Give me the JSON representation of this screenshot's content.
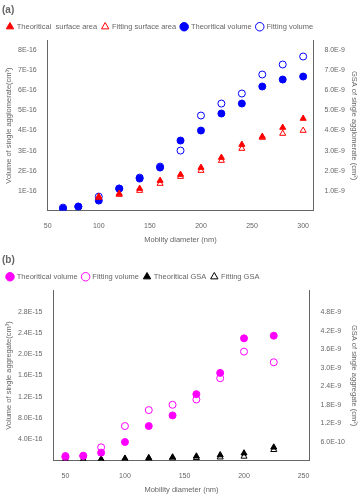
{
  "chart_data": [
    {
      "type": "scatter",
      "title": "(a)",
      "x_label": "Moblity diameter (nm)",
      "y_label": "Volume of single agglomerate(cm³)",
      "y2_label": "GSA of single agglomerate (cm²)",
      "xlim": [
        50,
        310
      ],
      "ylim": [
        0,
        8.5e-16
      ],
      "y2lim": [
        0,
        8.5e-09
      ],
      "xticks": [
        50,
        100,
        150,
        200,
        250,
        300
      ],
      "yticks": [
        {
          "value": 1e-16,
          "label": "1E-16"
        },
        {
          "value": 2e-16,
          "label": "2E-16"
        },
        {
          "value": 3e-16,
          "label": "3E-16"
        },
        {
          "value": 4e-16,
          "label": "4E-16"
        },
        {
          "value": 5e-16,
          "label": "5E-16"
        },
        {
          "value": 6e-16,
          "label": "6E-16"
        },
        {
          "value": 7e-16,
          "label": "7E-16"
        },
        {
          "value": 8e-16,
          "label": "8E-16"
        }
      ],
      "y2ticks": [
        {
          "value": 1e-09,
          "label": "1.0E-9"
        },
        {
          "value": 2e-09,
          "label": "2.0E-9"
        },
        {
          "value": 3e-09,
          "label": "3.0E-9"
        },
        {
          "value": 4e-09,
          "label": "4.0E-9"
        },
        {
          "value": 5e-09,
          "label": "5.0E-9"
        },
        {
          "value": 6e-09,
          "label": "6.0E-9"
        },
        {
          "value": 7e-09,
          "label": "7.0E-9"
        },
        {
          "value": 8e-09,
          "label": "8.0E-9"
        }
      ],
      "grid": false,
      "legend": "upper left",
      "series": [
        {
          "name": "Theoritical  surface area",
          "color": "#FF0000",
          "marker": "triangle",
          "axis": "y2",
          "x": [
            100,
            120,
            140,
            160,
            180,
            200,
            220,
            240,
            260,
            280,
            300
          ],
          "values": [
            7e-10,
            8.5e-10,
            1.1e-09,
            1.5e-09,
            1.8e-09,
            2.15e-09,
            2.65e-09,
            3.3e-09,
            3.7e-09,
            4.15e-09,
            4.6e-09
          ]
        },
        {
          "name": "Fitting surface area",
          "color": "#FF0000",
          "marker": "triangle-open",
          "axis": "y2",
          "x": [
            100,
            120,
            140,
            160,
            180,
            200,
            220,
            240,
            260,
            280,
            300
          ],
          "values": [
            6.5e-10,
            8e-10,
            1e-09,
            1.35e-09,
            1.7e-09,
            2e-09,
            2.5e-09,
            3.1e-09,
            3.65e-09,
            3.85e-09,
            4e-09
          ]
        },
        {
          "name": "Theoritical volume",
          "color": "#0000FF",
          "marker": "circle",
          "axis": "y",
          "x": [
            65,
            80,
            100,
            120,
            140,
            160,
            180,
            200,
            220,
            240,
            260,
            280,
            300
          ],
          "values": [
            1e-17,
            2e-17,
            5e-17,
            1.1e-16,
            1.6e-16,
            2.15e-16,
            3.5e-16,
            4e-16,
            4.85e-16,
            5.35e-16,
            6.2e-16,
            6.55e-16,
            6.7e-16
          ]
        },
        {
          "name": "Fitting volume",
          "color": "#0000FF",
          "marker": "circle-open",
          "axis": "y",
          "x": [
            65,
            80,
            100,
            120,
            140,
            160,
            180,
            200,
            220,
            240,
            260,
            280,
            300
          ],
          "values": [
            1.5e-17,
            2e-17,
            7e-17,
            1.1e-16,
            1.65e-16,
            2.2e-16,
            3e-16,
            4.75e-16,
            5.35e-16,
            5.85e-16,
            6.8e-16,
            7.3e-16,
            7.7e-16
          ]
        }
      ]
    },
    {
      "type": "scatter",
      "title": "(b)",
      "x_label": "Mobility diameter (nm)",
      "y_label": "Volume of single aggregate(cm³)",
      "y2_label": "GSA of single aggregate (cm²)",
      "xlim": [
        40,
        255
      ],
      "ylim": [
        0,
        3.2e-15
      ],
      "y2lim": [
        0,
        5.5e-09
      ],
      "xticks": [
        50,
        100,
        150,
        200,
        250
      ],
      "yticks": [
        {
          "value": 4e-16,
          "label": "4.0E-16"
        },
        {
          "value": 8e-16,
          "label": "8.0E-16"
        },
        {
          "value": 1.2e-15,
          "label": "1.2E-15"
        },
        {
          "value": 1.6e-15,
          "label": "1.6E-15"
        },
        {
          "value": 2e-15,
          "label": "2.0E-15"
        },
        {
          "value": 2.4e-15,
          "label": "2.4E-15"
        },
        {
          "value": 2.8e-15,
          "label": "2.8E-15"
        }
      ],
      "y2ticks": [
        {
          "value": 6e-10,
          "label": "6.0E-10"
        },
        {
          "value": 1.2e-09,
          "label": "1.2E-9"
        },
        {
          "value": 1.8e-09,
          "label": "1.8E-9"
        },
        {
          "value": 2.4e-09,
          "label": "2.4E-9"
        },
        {
          "value": 3e-09,
          "label": "3.0E-9"
        },
        {
          "value": 3.6e-09,
          "label": "3.6E-9"
        },
        {
          "value": 4.2e-09,
          "label": "4.2E-9"
        },
        {
          "value": 4.8e-09,
          "label": "4.8E-9"
        }
      ],
      "grid": false,
      "legend": "upper left",
      "series": [
        {
          "name": "Theoritical volume",
          "color": "#FF00FF",
          "marker": "circle",
          "axis": "y",
          "x": [
            50,
            65,
            80,
            100,
            120,
            140,
            160,
            180,
            200,
            225
          ],
          "values": [
            8.5e-17,
            9e-17,
            1.5e-16,
            3.5e-16,
            6.5e-16,
            8.5e-16,
            1.25e-15,
            1.65e-15,
            2.3e-15,
            2.35e-15
          ]
        },
        {
          "name": "Fitting volume",
          "color": "#FF00FF",
          "marker": "circle-open",
          "axis": "y",
          "x": [
            50,
            65,
            80,
            100,
            120,
            140,
            160,
            180,
            200,
            225
          ],
          "values": [
            6.5e-17,
            9e-17,
            2.5e-16,
            6.5e-16,
            9.5e-16,
            1.05e-15,
            1.15e-15,
            1.55e-15,
            2.05e-15,
            1.85e-15
          ]
        },
        {
          "name": "Theoritical GSA",
          "color": "#000000",
          "marker": "triangle",
          "axis": "y2",
          "x": [
            50,
            65,
            80,
            100,
            120,
            140,
            160,
            180,
            200,
            225
          ],
          "values": [
            3e-11,
            3.5e-11,
            4.5e-11,
            7e-11,
            9e-11,
            1.1e-10,
            1.4e-10,
            1.8e-10,
            2.4e-10,
            4.3e-10
          ]
        },
        {
          "name": "Fitting GSA",
          "color": "#000000",
          "marker": "triangle-open",
          "axis": "y2",
          "x": [
            50,
            65,
            80,
            100,
            120,
            140,
            160,
            180,
            200,
            225
          ],
          "values": [
            2e-11,
            2.5e-11,
            3e-11,
            4.5e-11,
            6e-11,
            7.5e-11,
            9e-11,
            1.1e-10,
            1.35e-10,
            3.5e-10
          ]
        }
      ]
    }
  ]
}
